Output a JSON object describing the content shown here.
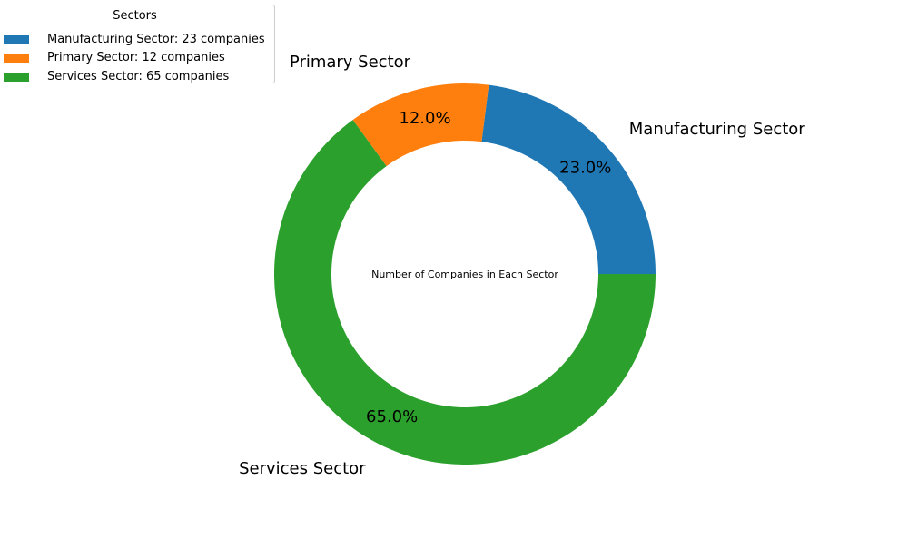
{
  "chart_data": {
    "type": "pie",
    "style": "donut",
    "center_text": "Number of Companies in Each Sector",
    "categories": [
      "Manufacturing Sector",
      "Primary Sector",
      "Services Sector"
    ],
    "values": [
      23,
      12,
      65
    ],
    "percent_labels": [
      "23.0%",
      "12.0%",
      "65.0%"
    ],
    "colors": [
      "#1f77b4",
      "#ff7f0e",
      "#2ca02c"
    ],
    "legend": {
      "title": "Sectors",
      "placement": "top-left",
      "entries": [
        "Manufacturing Sector: 23 companies",
        "Primary Sector: 12 companies",
        "Services Sector: 65 companies"
      ]
    }
  }
}
